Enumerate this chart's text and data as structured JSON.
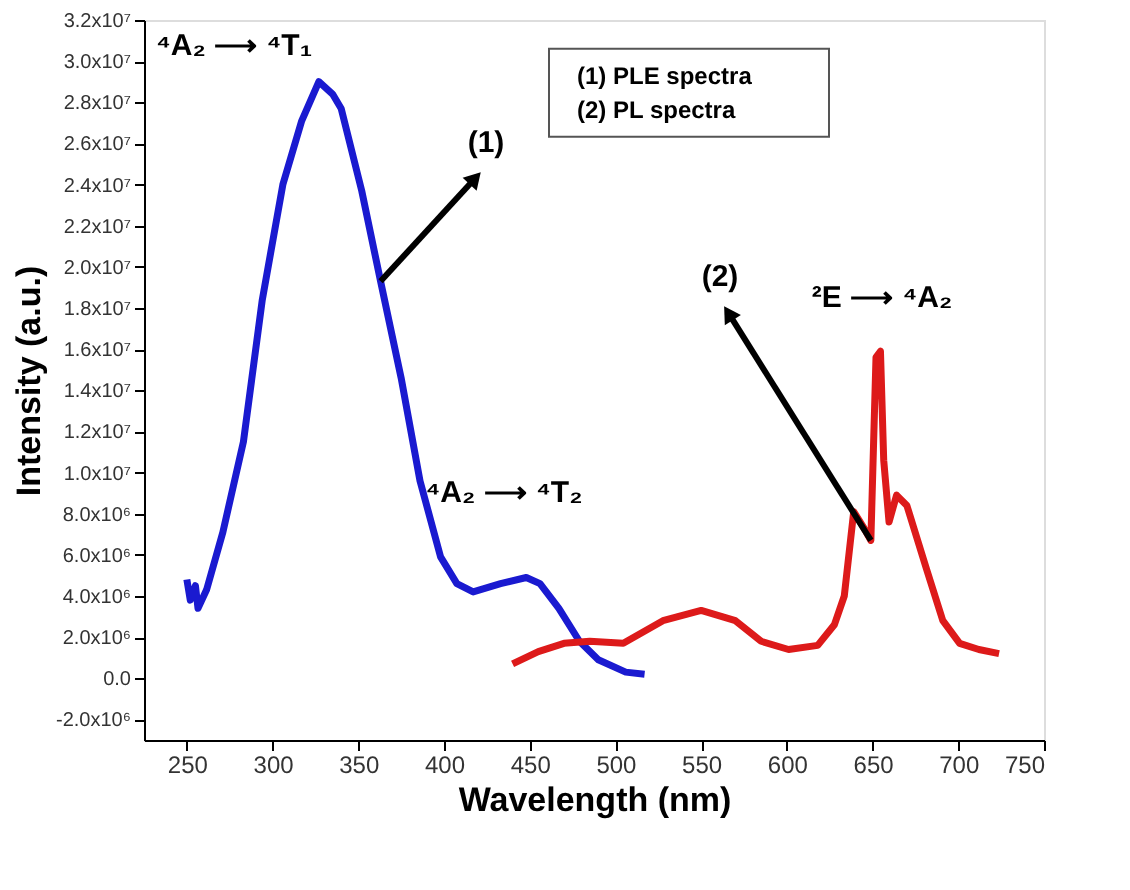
{
  "chart_data": {
    "type": "line",
    "xlabel": "Wavelength (nm)",
    "ylabel": "Intensity (a.u.)",
    "xlim": [
      225,
      750
    ],
    "ylim": [
      -3000000,
      32000000
    ],
    "xticks": [
      250,
      300,
      350,
      400,
      450,
      500,
      550,
      600,
      650,
      700,
      750
    ],
    "yticks": [
      {
        "value": -2000000,
        "label": "-2.0x10⁶"
      },
      {
        "value": 0,
        "label": "0.0"
      },
      {
        "value": 2000000,
        "label": "2.0x10⁶"
      },
      {
        "value": 4000000,
        "label": "4.0x10⁶"
      },
      {
        "value": 6000000,
        "label": "6.0x10⁶"
      },
      {
        "value": 8000000,
        "label": "8.0x10⁶"
      },
      {
        "value": 10000000,
        "label": "1.0x10⁷"
      },
      {
        "value": 12000000,
        "label": "1.2x10⁷"
      },
      {
        "value": 14000000,
        "label": "1.4x10⁷"
      },
      {
        "value": 16000000,
        "label": "1.6x10⁷"
      },
      {
        "value": 18000000,
        "label": "1.8x10⁷"
      },
      {
        "value": 20000000,
        "label": "2.0x10⁷"
      },
      {
        "value": 22000000,
        "label": "2.2x10⁷"
      },
      {
        "value": 24000000,
        "label": "2.4x10⁷"
      },
      {
        "value": 26000000,
        "label": "2.6x10⁷"
      },
      {
        "value": 28000000,
        "label": "2.8x10⁷"
      },
      {
        "value": 30000000,
        "label": "3.0x10⁷"
      },
      {
        "value": 32000000,
        "label": "3.2x10⁷"
      }
    ],
    "grid": false,
    "marker": "none",
    "line_style": "solid",
    "series": [
      {
        "color": "#1a1ad0",
        "x": [
          250,
          252,
          255,
          256.5,
          261.5,
          271,
          283,
          294,
          306,
          317,
          327,
          335,
          340,
          352,
          363,
          375,
          386,
          398,
          407.5,
          417,
          433,
          448,
          456,
          467,
          479,
          490,
          506,
          517
        ],
        "values": [
          4800000,
          3800000,
          4500000,
          3400000,
          4300000,
          7100000,
          11500000,
          18400000,
          24000000,
          27100000,
          29000000,
          28400000,
          27700000,
          23700000,
          19300000,
          14600000,
          9600000,
          5900000,
          4600000,
          4200000,
          4600000,
          4900000,
          4600000,
          3400000,
          1800000,
          900000,
          300000,
          200000
        ]
      },
      {
        "color": "#dd1a1a",
        "x": [
          440,
          455,
          470,
          485,
          504.6,
          527.7,
          550,
          570,
          585,
          601,
          618,
          627.7,
          633.5,
          639,
          645,
          649,
          652,
          654.6,
          656.5,
          659.6,
          664,
          670,
          681.5,
          691,
          700.8,
          712,
          723.8
        ],
        "values": [
          700000,
          1300000,
          1700000,
          1800000,
          1700000,
          2800000,
          3300000,
          2800000,
          1800000,
          1400000,
          1600000,
          2600000,
          4000000,
          8100000,
          7300000,
          6700000,
          15600000,
          15900000,
          10600000,
          7600000,
          8900000,
          8400000,
          5300000,
          2800000,
          1700000,
          1400000,
          1200000
        ]
      }
    ],
    "annotations": [
      "⁴A₂ ⟶ ⁴T₁",
      "(1)",
      "⁴A₂ ⟶ ⁴T₂",
      "(2)",
      "²E ⟶ ⁴A₂",
      "(1) PLE spectra",
      "(2) PL spectra"
    ]
  }
}
